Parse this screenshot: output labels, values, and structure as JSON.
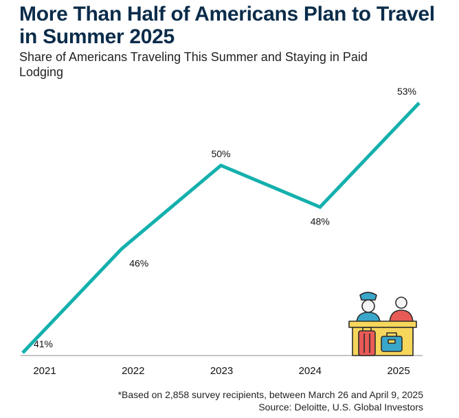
{
  "title": "More Than Half of Americans Plan to Travel in Summer 2025",
  "subtitle": "Share of Americans Traveling This Summer and Staying in Paid Lodging",
  "footnote": "*Based on 2,858 survey recipients, between March 26 and April 9, 2025",
  "source": "Source: Deloitte, U.S. Global Investors",
  "colors": {
    "line": "#14b0ad",
    "title": "#0b2c4a",
    "axis": "#888888"
  },
  "illustration": "hotel-front-desk-icon",
  "chart_data": {
    "type": "line",
    "categories": [
      "2021",
      "2022",
      "2023",
      "2024",
      "2025"
    ],
    "values": [
      41,
      46,
      50,
      48,
      53
    ],
    "data_labels": [
      "41%",
      "46%",
      "50%",
      "48%",
      "53%"
    ],
    "unit": "%",
    "ylim": [
      41,
      53
    ],
    "grid": false,
    "legend": "none"
  }
}
